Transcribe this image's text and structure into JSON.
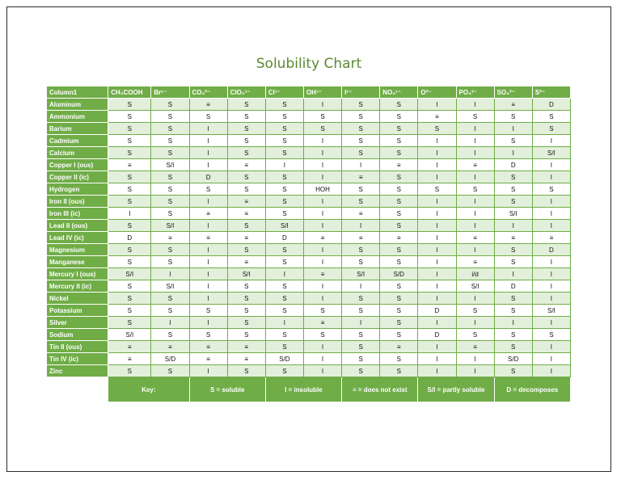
{
  "title": "Solubility Chart",
  "header": [
    "Column1",
    "CH₃COOH",
    "Br¹⁻",
    "CO₃²⁻",
    "ClO₃¹⁻",
    "Cl¹⁻",
    "OH¹⁻",
    "I¹⁻",
    "NO₃¹⁻",
    "O²⁻",
    "PO₄³⁻",
    "SO₄²⁻",
    "S²⁻"
  ],
  "rows": [
    {
      "name": "Aluminum",
      "values": [
        "S",
        "S",
        "≡",
        "S",
        "S",
        "I",
        "S",
        "S",
        "I",
        "I",
        "≡",
        "D"
      ]
    },
    {
      "name": "Ammonium",
      "values": [
        "S",
        "S",
        "S",
        "S",
        "S",
        "S",
        "S",
        "S",
        "≡",
        "S",
        "S",
        "S"
      ]
    },
    {
      "name": "Barium",
      "values": [
        "S",
        "S",
        "I",
        "S",
        "S",
        "S",
        "S",
        "S",
        "S",
        "I",
        "I",
        "S"
      ]
    },
    {
      "name": "Cadmium",
      "values": [
        "S",
        "S",
        "I",
        "S",
        "S",
        "I",
        "S",
        "S",
        "I",
        "I",
        "S",
        "I"
      ]
    },
    {
      "name": "Calcium",
      "values": [
        "S",
        "S",
        "I",
        "S",
        "S",
        "I",
        "S",
        "S",
        "I",
        "I",
        "I",
        "S/I"
      ]
    },
    {
      "name": "Copper I (ous)",
      "values": [
        "≡",
        "S/I",
        "I",
        "≡",
        "I",
        "I",
        "I",
        "≡",
        "I",
        "≡",
        "D",
        "I"
      ]
    },
    {
      "name": "Copper II (ic)",
      "values": [
        "S",
        "S",
        "D",
        "S",
        "S",
        "I",
        "≡",
        "S",
        "I",
        "I",
        "S",
        "I"
      ]
    },
    {
      "name": "Hydrogen",
      "values": [
        "S",
        "S",
        "S",
        "S",
        "S",
        "HOH",
        "S",
        "S",
        "S",
        "S",
        "S",
        "S"
      ]
    },
    {
      "name": "Iron II (ous)",
      "values": [
        "S",
        "S",
        "I",
        "≡",
        "S",
        "I",
        "S",
        "S",
        "I",
        "I",
        "S",
        "I"
      ]
    },
    {
      "name": "Iron III (ic)",
      "values": [
        "I",
        "S",
        "≡",
        "≡",
        "S",
        "I",
        "≡",
        "S",
        "I",
        "I",
        "S/I",
        "I"
      ]
    },
    {
      "name": "Lead II (ous)",
      "values": [
        "S",
        "S/I",
        "I",
        "S",
        "S/I",
        "I",
        "I",
        "S",
        "I",
        "I",
        "I",
        "I"
      ]
    },
    {
      "name": "Lead IV (ic)",
      "values": [
        "D",
        "≡",
        "≡",
        "≡",
        "D",
        "≡",
        "≡",
        "≡",
        "I",
        "≡",
        "≡",
        "≡"
      ]
    },
    {
      "name": "Magnesium",
      "values": [
        "S",
        "S",
        "I",
        "S",
        "S",
        "I",
        "S",
        "S",
        "I",
        "I",
        "S",
        "D"
      ]
    },
    {
      "name": "Manganese",
      "values": [
        "S",
        "S",
        "I",
        "≡",
        "S",
        "I",
        "S",
        "S",
        "I",
        "≡",
        "S",
        "I"
      ]
    },
    {
      "name": "Mercury I (ous)",
      "values": [
        "S/I",
        "I",
        "I",
        "S/I",
        "I",
        "≡",
        "S/I",
        "S/D",
        "I",
        "i/d",
        "I",
        "I"
      ]
    },
    {
      "name": "Mercury II (ic)",
      "values": [
        "S",
        "S/I",
        "I",
        "S",
        "S",
        "I",
        "I",
        "S",
        "I",
        "S/I",
        "D",
        "I"
      ]
    },
    {
      "name": "Nickel",
      "values": [
        "S",
        "S",
        "I",
        "S",
        "S",
        "I",
        "S",
        "S",
        "I",
        "I",
        "S",
        "I"
      ]
    },
    {
      "name": "Potassium",
      "values": [
        "S",
        "S",
        "S",
        "S",
        "S",
        "S",
        "S",
        "S",
        "D",
        "S",
        "S",
        "S/I"
      ]
    },
    {
      "name": "Silver",
      "values": [
        "S",
        "I",
        "I",
        "S",
        "I",
        "≡",
        "I",
        "S",
        "I",
        "I",
        "I",
        "I"
      ]
    },
    {
      "name": "Sodium",
      "values": [
        "S/I",
        "S",
        "S",
        "S",
        "S",
        "S",
        "S",
        "S",
        "D",
        "S",
        "S",
        "S"
      ]
    },
    {
      "name": "Tin II (ous)",
      "values": [
        "≡",
        "≡",
        "≡",
        "≡",
        "S",
        "I",
        "S",
        "≡",
        "I",
        "≡",
        "S",
        "I"
      ]
    },
    {
      "name": "Tin IV (ic)",
      "values": [
        "≡",
        "S/D",
        "≡",
        "≡",
        "S/D",
        "I",
        "S",
        "S",
        "I",
        "I",
        "S/D",
        "I"
      ]
    },
    {
      "name": "Zinc",
      "values": [
        "S",
        "S",
        "I",
        "S",
        "S",
        "I",
        "S",
        "S",
        "I",
        "I",
        "S",
        "I"
      ]
    }
  ],
  "key": [
    "Key:",
    "S = soluble",
    "I = insoluble",
    "≡ = does not exist",
    "S/I = partly soluble",
    "D = decomposes"
  ],
  "colors": {
    "green": "#70ad47",
    "light_green": "#e2efda",
    "title": "#5a8a32"
  }
}
